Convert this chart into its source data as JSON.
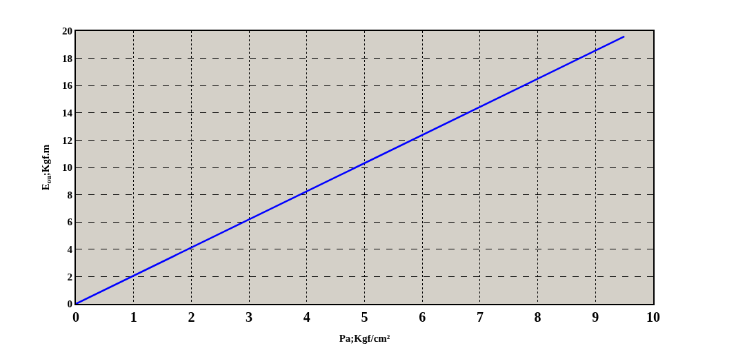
{
  "chart_data": {
    "type": "line",
    "xlabel": "Pa;Kgf/cm²",
    "ylabel": "E$_{ou}$;Kgf.m",
    "x": [
      0,
      9.5
    ],
    "series": [
      {
        "color": "#0000ff",
        "values": [
          0,
          19.6
        ]
      }
    ],
    "xlim": [
      0,
      10
    ],
    "xticks": [
      0,
      1,
      2,
      3,
      4,
      5,
      6,
      7,
      8,
      9,
      10
    ],
    "ylim": [
      0,
      20
    ],
    "yticks": [
      0,
      2,
      4,
      6,
      8,
      10,
      12,
      14,
      16,
      18,
      20
    ],
    "grid": true,
    "marker": "none",
    "line_style": "solid"
  }
}
